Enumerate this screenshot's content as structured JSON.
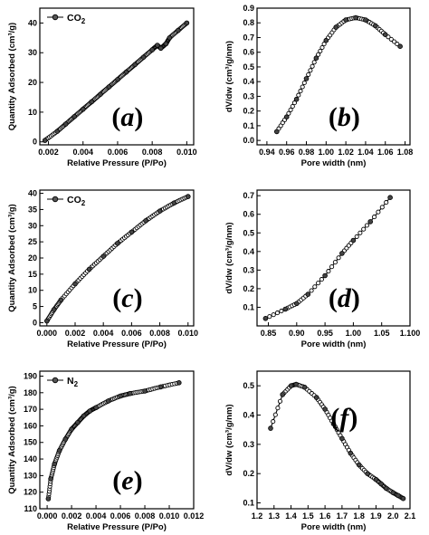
{
  "chart_data": [
    {
      "panel": "a",
      "type": "line",
      "marker": "circle",
      "xlabel": "Relative Pressure (P/Po)",
      "ylabel": "Quantity Adsorbed (cm³/g)",
      "xlim": [
        0.0015,
        0.0104
      ],
      "ylim": [
        -1,
        45
      ],
      "xticks": [
        "0.002",
        "0.004",
        "0.006",
        "0.008",
        "0.010"
      ],
      "yticks": [
        "0",
        "10",
        "20",
        "30",
        "40"
      ],
      "legend": "CO2",
      "label": "(a)",
      "series": [
        {
          "name": "CO2",
          "x": [
            0.0018,
            0.0025,
            0.003,
            0.0035,
            0.004,
            0.0045,
            0.005,
            0.0055,
            0.006,
            0.0065,
            0.007,
            0.0075,
            0.008,
            0.0083,
            0.0085,
            0.0088,
            0.009,
            0.0095,
            0.01
          ],
          "y": [
            0.5,
            3.5,
            6,
            8.5,
            11,
            13.5,
            16,
            18.5,
            21,
            23.5,
            26,
            28.5,
            31,
            32.5,
            31.5,
            33,
            35,
            37.5,
            40
          ]
        }
      ]
    },
    {
      "panel": "b",
      "type": "line",
      "marker": "circle",
      "xlabel": "Pore width (nm)",
      "ylabel": "dV/dw (cm³/g/nm)",
      "xlim": [
        0.93,
        1.085
      ],
      "ylim": [
        -0.03,
        0.9
      ],
      "xticks": [
        "0.94",
        "0.96",
        "0.98",
        "1.00",
        "1.02",
        "1.04",
        "1.06",
        "1.08"
      ],
      "yticks": [
        "0.0",
        "0.1",
        "0.2",
        "0.3",
        "0.4",
        "0.5",
        "0.6",
        "0.7",
        "0.8",
        "0.9"
      ],
      "label": "(b)",
      "series": [
        {
          "name": "",
          "x": [
            0.95,
            0.96,
            0.97,
            0.98,
            0.99,
            1.0,
            1.01,
            1.02,
            1.03,
            1.04,
            1.05,
            1.06,
            1.075
          ],
          "y": [
            0.06,
            0.16,
            0.28,
            0.42,
            0.56,
            0.68,
            0.77,
            0.82,
            0.835,
            0.82,
            0.78,
            0.72,
            0.64
          ]
        }
      ]
    },
    {
      "panel": "c",
      "type": "line",
      "marker": "circle",
      "xlabel": "Relative Pressure (P/Po)",
      "ylabel": "Quantity Adsorbed (cm³/g)",
      "xlim": [
        -0.0005,
        0.0104
      ],
      "ylim": [
        -1,
        41
      ],
      "xticks": [
        "0.000",
        "0.002",
        "0.004",
        "0.006",
        "0.008",
        "0.010"
      ],
      "yticks": [
        "0",
        "5",
        "10",
        "15",
        "20",
        "25",
        "30",
        "35",
        "40"
      ],
      "legend": "CO2",
      "label": "(c)",
      "series": [
        {
          "name": "CO2",
          "x": [
            0.0,
            0.0005,
            0.001,
            0.002,
            0.003,
            0.004,
            0.005,
            0.006,
            0.007,
            0.008,
            0.009,
            0.01
          ],
          "y": [
            0.5,
            4,
            7,
            12,
            16.5,
            20.5,
            24.5,
            28,
            31.5,
            34.5,
            37,
            39
          ]
        }
      ]
    },
    {
      "panel": "d",
      "type": "line",
      "marker": "circle",
      "xlabel": "Pore width (nm)",
      "ylabel": "dV/dw (cm³/g/nm)",
      "xlim": [
        0.83,
        1.1
      ],
      "ylim": [
        0.0,
        0.73
      ],
      "xticks": [
        "0.85",
        "0.90",
        "0.95",
        "1.00",
        "1.05",
        "1.100"
      ],
      "yticks": [
        "0.1",
        "0.2",
        "0.3",
        "0.4",
        "0.5",
        "0.6",
        "0.7"
      ],
      "label": "(d)",
      "series": [
        {
          "name": "",
          "x": [
            0.845,
            0.88,
            0.9,
            0.92,
            0.95,
            0.98,
            1.0,
            1.03,
            1.065
          ],
          "y": [
            0.04,
            0.09,
            0.12,
            0.17,
            0.27,
            0.39,
            0.46,
            0.56,
            0.69
          ]
        }
      ]
    },
    {
      "panel": "e",
      "type": "line",
      "marker": "circle",
      "xlabel": "Relative Pressure (P/Po)",
      "ylabel": "Quantity Adsorbed (cm³/g)",
      "xlim": [
        -0.0006,
        0.012
      ],
      "ylim": [
        110,
        193
      ],
      "xticks": [
        "0.000",
        "0.002",
        "0.004",
        "0.006",
        "0.008",
        "0.010",
        "0.012"
      ],
      "yticks": [
        "110",
        "120",
        "130",
        "140",
        "150",
        "160",
        "170",
        "180",
        "190"
      ],
      "legend": "N2",
      "label": "(e)",
      "series": [
        {
          "name": "N2",
          "x": [
            0.0001,
            0.0003,
            0.0006,
            0.001,
            0.0015,
            0.002,
            0.0025,
            0.003,
            0.0035,
            0.004,
            0.005,
            0.006,
            0.0068,
            0.008,
            0.0093,
            0.0108
          ],
          "y": [
            116,
            128,
            137,
            145,
            152,
            158,
            162,
            166,
            169,
            171,
            175,
            178,
            179.5,
            181,
            183.5,
            186
          ]
        }
      ]
    },
    {
      "panel": "f",
      "type": "line",
      "marker": "circle",
      "xlabel": "Pore width (nm)",
      "ylabel": "dV/dw (cm³/g/nm)",
      "xlim": [
        1.2,
        2.1
      ],
      "ylim": [
        0.08,
        0.55
      ],
      "xticks": [
        "1.2",
        "1.3",
        "1.4",
        "1.5",
        "1.6",
        "1.7",
        "1.8",
        "1.9",
        "2.0",
        "2.1"
      ],
      "yticks": [
        "0.1",
        "0.2",
        "0.3",
        "0.4",
        "0.5"
      ],
      "label": "(f)",
      "series": [
        {
          "name": "",
          "x": [
            1.28,
            1.35,
            1.4,
            1.43,
            1.48,
            1.55,
            1.6,
            1.65,
            1.7,
            1.75,
            1.8,
            1.85,
            1.9,
            1.93,
            1.96,
            2.0,
            2.03,
            2.06
          ],
          "y": [
            0.355,
            0.47,
            0.5,
            0.505,
            0.495,
            0.46,
            0.42,
            0.37,
            0.32,
            0.27,
            0.23,
            0.2,
            0.18,
            0.165,
            0.15,
            0.135,
            0.125,
            0.115
          ]
        }
      ]
    }
  ]
}
